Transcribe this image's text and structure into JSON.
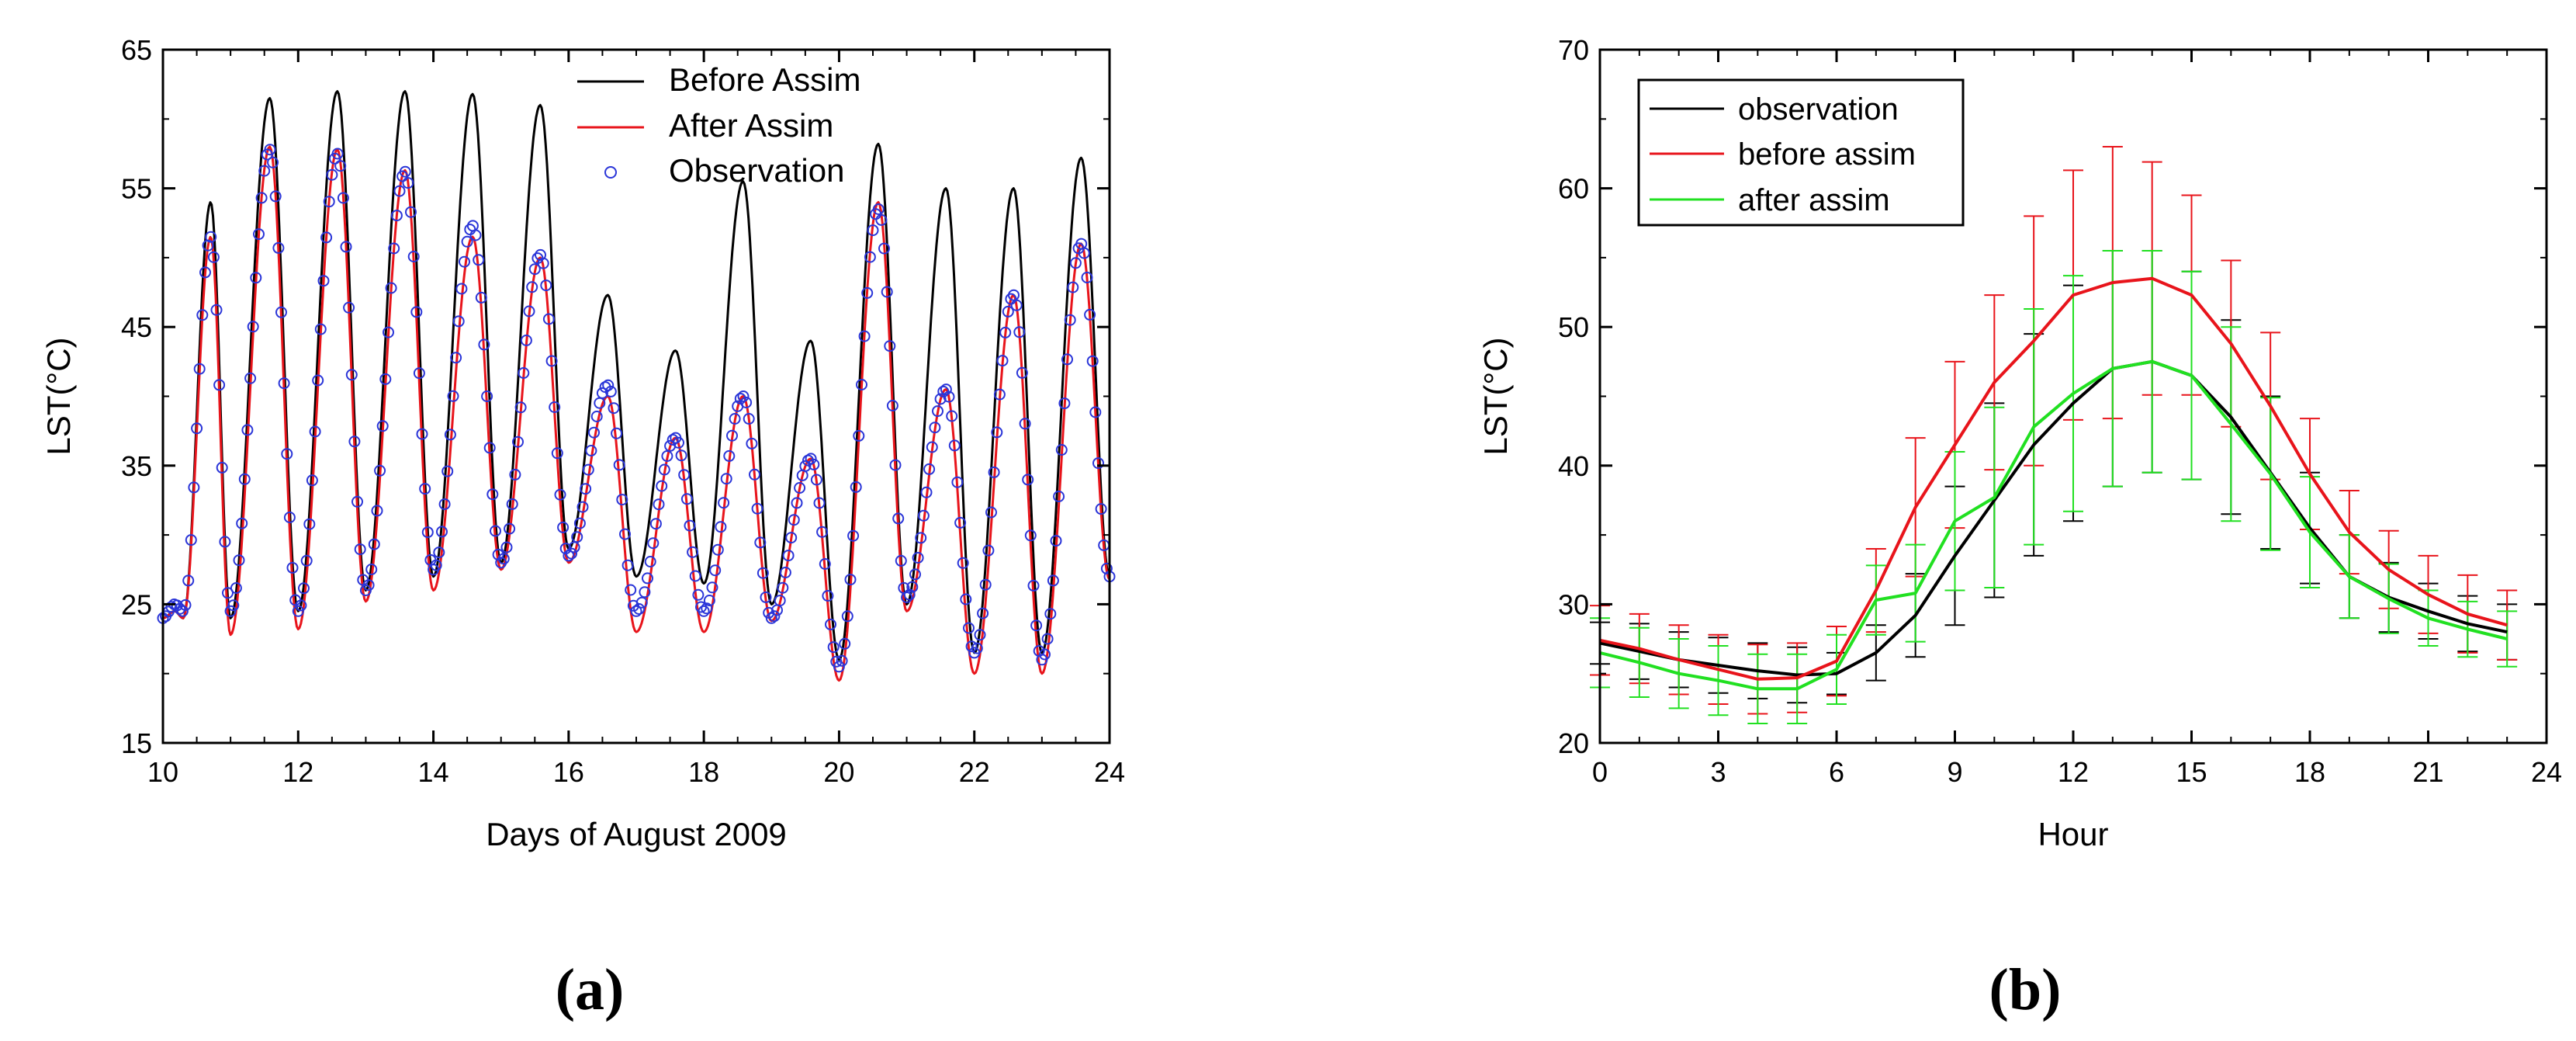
{
  "colors": {
    "black": "#000000",
    "red": "#e8141b",
    "green": "#21e021",
    "marker": "#2a35d8"
  },
  "panels": {
    "a_label": "(a)",
    "b_label": "(b)"
  },
  "chart_data": [
    {
      "id": "a",
      "type": "line",
      "xlabel": "Days of August 2009",
      "ylabel": "LST(°C)",
      "xlim": [
        10,
        24
      ],
      "ylim": [
        15,
        65
      ],
      "xticks": [
        10,
        12,
        14,
        16,
        18,
        20,
        22,
        24
      ],
      "yticks": [
        15,
        25,
        35,
        45,
        55,
        65
      ],
      "legend_position": "top-right",
      "legend": [
        "Before Assim",
        "After Assim",
        "Observation"
      ],
      "cycles": [
        {
          "day": 10,
          "min": [
            24.0,
            24.0,
            24.0
          ],
          "max": [
            24.5,
            24.5,
            25.0
          ]
        },
        {
          "day": 10.3,
          "min": [
            24.0,
            24.0,
            24.5
          ],
          "max": [
            54.0,
            51.5,
            51.5
          ]
        },
        {
          "day": 11,
          "min": [
            24.0,
            22.8,
            24.5
          ],
          "max": [
            61.5,
            58.0,
            57.8
          ]
        },
        {
          "day": 12,
          "min": [
            24.5,
            23.2,
            24.5
          ],
          "max": [
            62.0,
            57.8,
            57.5
          ]
        },
        {
          "day": 13,
          "min": [
            26.0,
            25.2,
            26.0
          ],
          "max": [
            62.0,
            56.3,
            56.2
          ]
        },
        {
          "day": 14,
          "min": [
            27.0,
            26.0,
            27.5
          ],
          "max": [
            61.8,
            51.5,
            52.3
          ]
        },
        {
          "day": 15,
          "min": [
            28.0,
            27.5,
            28.0
          ],
          "max": [
            61.0,
            50.0,
            50.2
          ]
        },
        {
          "day": 16,
          "min": [
            29.0,
            28.0,
            28.5
          ],
          "max": [
            47.3,
            40.0,
            40.8
          ]
        },
        {
          "day": 17,
          "min": [
            27.0,
            23.0,
            24.5
          ],
          "max": [
            43.3,
            37.0,
            37.0
          ]
        },
        {
          "day": 18,
          "min": [
            26.5,
            23.0,
            24.5
          ],
          "max": [
            55.5,
            40.0,
            40.0
          ]
        },
        {
          "day": 19,
          "min": [
            25.0,
            23.8,
            24.0
          ],
          "max": [
            44.0,
            35.5,
            35.5
          ]
        },
        {
          "day": 20,
          "min": [
            21.0,
            19.5,
            20.5
          ],
          "max": [
            58.2,
            54.0,
            53.5
          ]
        },
        {
          "day": 21,
          "min": [
            25.0,
            24.5,
            25.5
          ],
          "max": [
            55.0,
            40.5,
            40.5
          ]
        },
        {
          "day": 22,
          "min": [
            21.5,
            20.0,
            21.5
          ],
          "max": [
            55.0,
            47.3,
            47.3
          ]
        },
        {
          "day": 23,
          "min": [
            21.5,
            20.0,
            21.0
          ],
          "max": [
            57.2,
            51.0,
            51.0
          ]
        },
        {
          "day": 24,
          "min": [
            27.0,
            26.8,
            27.0
          ],
          "max": [
            27.0,
            26.8,
            27.0
          ]
        }
      ]
    },
    {
      "id": "b",
      "type": "line",
      "xlabel": "Hour",
      "ylabel": "LST(°C)",
      "xlim": [
        0,
        24
      ],
      "ylim": [
        20,
        70
      ],
      "xticks": [
        0,
        3,
        6,
        9,
        12,
        15,
        18,
        21,
        24
      ],
      "yticks": [
        20,
        30,
        40,
        50,
        60,
        70
      ],
      "legend_position": "top-left",
      "x": [
        0,
        1,
        2,
        3,
        4,
        5,
        6,
        7,
        8,
        9,
        10,
        11,
        12,
        13,
        14,
        15,
        16,
        17,
        18,
        19,
        20,
        21,
        22,
        23
      ],
      "series": [
        {
          "name": "observation",
          "values": [
            27.2,
            26.6,
            26.0,
            25.6,
            25.2,
            24.9,
            25.0,
            26.5,
            29.2,
            33.5,
            37.5,
            41.5,
            44.5,
            47.0,
            47.5,
            46.5,
            43.5,
            39.5,
            35.5,
            32.0,
            30.5,
            29.5,
            28.6,
            28.0
          ],
          "errors": [
            1.5,
            2.0,
            2.0,
            2.0,
            2.0,
            2.0,
            1.5,
            2.0,
            3.0,
            5.0,
            7.0,
            8.0,
            8.5,
            8.5,
            8.0,
            7.5,
            7.0,
            5.5,
            4.0,
            3.0,
            2.5,
            2.0,
            2.0,
            2.0
          ]
        },
        {
          "name": "before assim",
          "values": [
            27.4,
            26.8,
            26.0,
            25.3,
            24.6,
            24.7,
            25.9,
            31.0,
            37.0,
            41.5,
            46.0,
            49.0,
            52.3,
            53.2,
            53.5,
            52.3,
            48.8,
            44.3,
            39.4,
            35.2,
            32.5,
            30.7,
            29.3,
            28.5
          ],
          "errors": [
            2.5,
            2.5,
            2.5,
            2.5,
            2.5,
            2.5,
            2.5,
            3.0,
            5.0,
            6.0,
            6.3,
            9.0,
            9.0,
            9.8,
            8.4,
            7.2,
            6.0,
            5.3,
            4.0,
            3.0,
            2.8,
            2.8,
            2.8,
            2.5
          ]
        },
        {
          "name": "after assim",
          "values": [
            26.5,
            25.8,
            25.0,
            24.5,
            23.9,
            23.9,
            25.3,
            30.3,
            30.8,
            36.0,
            37.7,
            42.8,
            45.2,
            47.0,
            47.5,
            46.5,
            43.0,
            39.4,
            35.2,
            32.0,
            30.4,
            29.0,
            28.2,
            27.5
          ],
          "errors": [
            2.5,
            2.5,
            2.5,
            2.5,
            2.5,
            2.5,
            2.5,
            2.5,
            3.5,
            5.0,
            6.5,
            8.5,
            8.5,
            8.5,
            8.0,
            7.5,
            7.0,
            5.5,
            4.0,
            3.0,
            2.5,
            2.0,
            2.0,
            2.0
          ]
        }
      ]
    }
  ]
}
